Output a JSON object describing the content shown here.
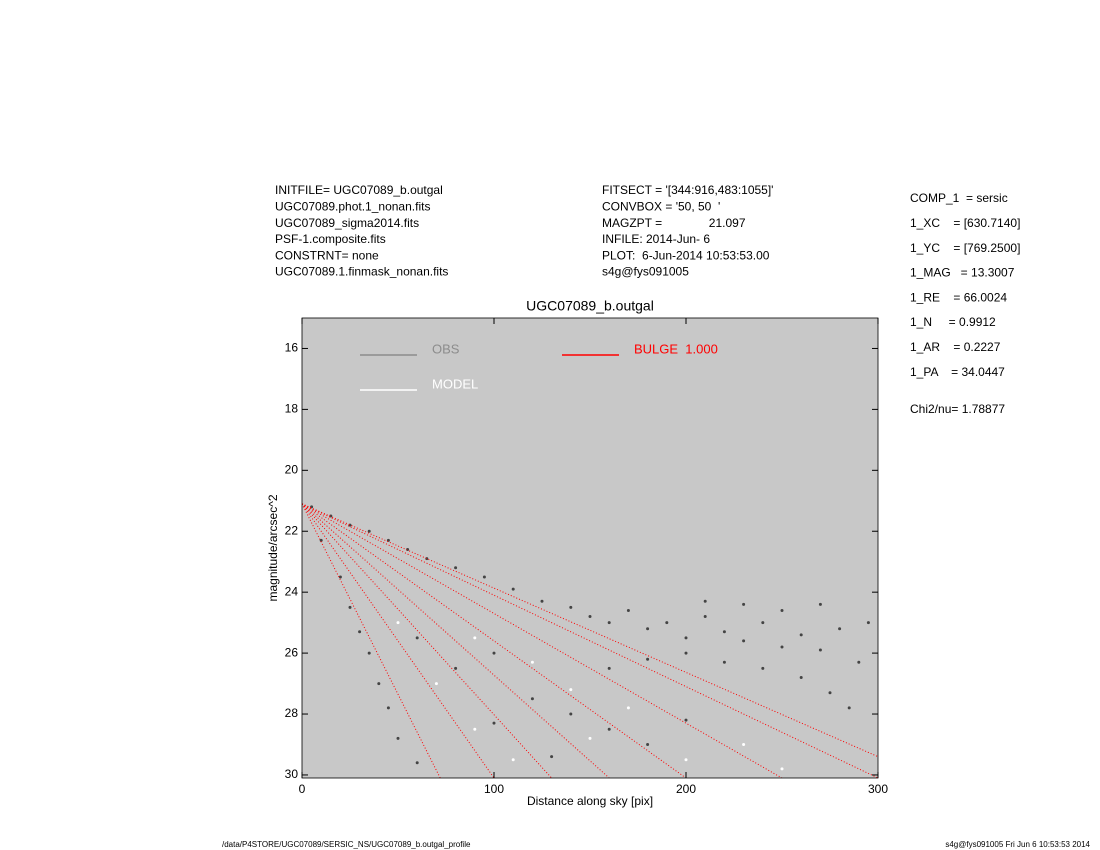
{
  "header": {
    "left": [
      "INITFILE= UGC07089_b.outgal",
      "UGC07089.phot.1_nonan.fits",
      "UGC07089_sigma2014.fits",
      "PSF-1.composite.fits",
      "CONSTRNT= none",
      "UGC07089.1.finmask_nonan.fits"
    ],
    "middle": [
      "FITSECT = '[344:916,483:1055]'",
      "CONVBOX = '50, 50  '",
      "MAGZPT =              21.097",
      "INFILE: 2014-Jun- 6",
      "PLOT:  6-Jun-2014 10:53:53.00",
      "s4g@fys091005"
    ],
    "right": [
      "COMP_1  = sersic",
      "1_XC    = [630.7140]",
      "1_YC    = [769.2500]",
      "1_MAG   = 13.3007",
      "1_RE    = 66.0024",
      "1_N     = 0.9912",
      "1_AR    = 0.2227",
      "1_PA    = 34.0447"
    ],
    "chi": "Chi2/nu=      1.78877"
  },
  "footer": {
    "left": "/data/P4STORE/UGC07089/SERSIC_NS/UGC07089_b.outgal_profile",
    "right": "s4g@fys091005  Fri Jun  6 10:53:53 2014"
  },
  "chart_data": {
    "type": "scatter",
    "title": "UGC07089_b.outgal",
    "xlabel": "Distance along sky [pix]",
    "ylabel": "magnitude/arcsec^2",
    "xlim": [
      0,
      300
    ],
    "ylim": [
      15,
      30.1
    ],
    "y_inverted": true,
    "xticks": [
      0,
      100,
      200,
      300
    ],
    "yticks": [
      16,
      18,
      20,
      22,
      24,
      26,
      28,
      30
    ],
    "background": "#c8c8c8",
    "series": [
      {
        "name": "OBS",
        "color": "#444444",
        "legend_color": "#8c8c8c",
        "x": [
          5,
          15,
          25,
          35,
          45,
          55,
          65,
          80,
          95,
          110,
          125,
          140,
          150,
          160,
          170,
          180,
          190,
          200,
          210,
          220,
          230,
          240,
          250,
          260,
          270,
          280,
          290,
          295,
          200,
          220,
          240,
          260,
          275,
          285,
          180,
          160,
          210,
          250,
          270,
          230,
          10,
          20,
          25,
          30,
          35,
          40,
          45,
          50,
          60,
          60,
          80,
          100,
          120,
          140,
          160,
          100,
          180,
          200,
          130
        ],
        "y": [
          21.2,
          21.5,
          21.8,
          22.0,
          22.3,
          22.6,
          22.9,
          23.2,
          23.5,
          23.9,
          24.3,
          24.5,
          24.8,
          25.0,
          24.6,
          25.2,
          25.0,
          25.5,
          24.8,
          25.3,
          25.6,
          25.0,
          25.8,
          25.4,
          25.9,
          25.2,
          26.3,
          25.0,
          26.0,
          26.3,
          26.5,
          26.8,
          27.3,
          27.8,
          26.2,
          26.5,
          24.3,
          24.6,
          24.4,
          24.4,
          22.3,
          23.5,
          24.5,
          25.3,
          26.0,
          27.0,
          27.8,
          28.8,
          29.6,
          25.5,
          26.5,
          26.0,
          27.5,
          28.0,
          28.5,
          28.3,
          29.0,
          28.2,
          29.4
        ]
      },
      {
        "name": "MODEL",
        "color": "#ffffff",
        "x": [
          50,
          70,
          90,
          110,
          150,
          200,
          250,
          120,
          170,
          230,
          90,
          140
        ],
        "y": [
          25,
          27,
          28.5,
          29.5,
          28.8,
          29.5,
          29.8,
          26.3,
          27.8,
          29.0,
          25.5,
          27.2
        ]
      },
      {
        "name": "BULGE  1.000",
        "color": "#ff0000",
        "rays": [
          {
            "x": [
              0,
              300
            ],
            "y": [
              21.1,
              29.4
            ]
          },
          {
            "x": [
              0,
              300
            ],
            "y": [
              21.1,
              30.1
            ]
          },
          {
            "x": [
              0,
              250
            ],
            "y": [
              21.1,
              30.1
            ]
          },
          {
            "x": [
              0,
              200
            ],
            "y": [
              21.1,
              30.1
            ]
          },
          {
            "x": [
              0,
              160
            ],
            "y": [
              21.1,
              30.1
            ]
          },
          {
            "x": [
              0,
              130
            ],
            "y": [
              21.1,
              30.1
            ]
          },
          {
            "x": [
              0,
              100
            ],
            "y": [
              21.1,
              30.1
            ]
          },
          {
            "x": [
              0,
              72
            ],
            "y": [
              21.1,
              30.1
            ]
          }
        ]
      }
    ]
  }
}
